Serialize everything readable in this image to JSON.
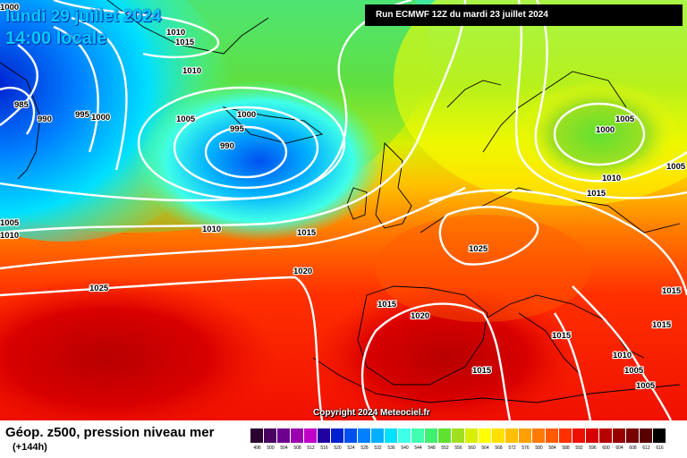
{
  "header": {
    "date_line": "lundi 29 juillet 2024",
    "time_line": "14:00 locale",
    "run_info": "Run ECMWF 12Z du mardi 23 juillet 2024"
  },
  "footer": {
    "copyright": "Copyright 2024 Meteociel.fr",
    "legend_title": "Géop. z500, pression niveau mer",
    "legend_subtitle": "(+144h)"
  },
  "legend_scale": {
    "values": [
      "496",
      "500",
      "504",
      "508",
      "512",
      "516",
      "520",
      "524",
      "528",
      "532",
      "536",
      "540",
      "544",
      "548",
      "552",
      "556",
      "560",
      "564",
      "568",
      "572",
      "576",
      "580",
      "584",
      "588",
      "592",
      "596",
      "600",
      "604",
      "608",
      "612",
      "616"
    ],
    "colors": [
      "#2a0030",
      "#4a0060",
      "#6e0090",
      "#9a00b0",
      "#c000c8",
      "#2000a0",
      "#0020d0",
      "#0050f0",
      "#0080ff",
      "#00b0ff",
      "#00e0ff",
      "#40ffe8",
      "#40ffb0",
      "#40f070",
      "#60e030",
      "#a0e020",
      "#d8f000",
      "#ffff00",
      "#ffe000",
      "#ffc000",
      "#ffa000",
      "#ff7a00",
      "#ff5a00",
      "#ff3000",
      "#f01000",
      "#d80000",
      "#b80000",
      "#980000",
      "#780000",
      "#580000",
      "#000000"
    ]
  },
  "isobar_labels": [
    {
      "text": "1000"
    },
    {
      "text": "1010"
    },
    {
      "text": "1015"
    },
    {
      "text": "985"
    },
    {
      "text": "990"
    },
    {
      "text": "995"
    },
    {
      "text": "1000"
    },
    {
      "text": "1010"
    },
    {
      "text": "1005"
    },
    {
      "text": "1000"
    },
    {
      "text": "995"
    },
    {
      "text": "990"
    },
    {
      "text": "1005"
    },
    {
      "text": "1010"
    },
    {
      "text": "1010"
    },
    {
      "text": "1015"
    },
    {
      "text": "1020"
    },
    {
      "text": "1025"
    },
    {
      "text": "1025"
    },
    {
      "text": "1015"
    },
    {
      "text": "1020"
    },
    {
      "text": "1015"
    },
    {
      "text": "1005"
    },
    {
      "text": "1000"
    },
    {
      "text": "1005"
    },
    {
      "text": "1010"
    },
    {
      "text": "1015"
    },
    {
      "text": "1015"
    },
    {
      "text": "1015"
    },
    {
      "text": "1015"
    },
    {
      "text": "1010"
    },
    {
      "text": "1005"
    },
    {
      "text": "1005"
    }
  ]
}
